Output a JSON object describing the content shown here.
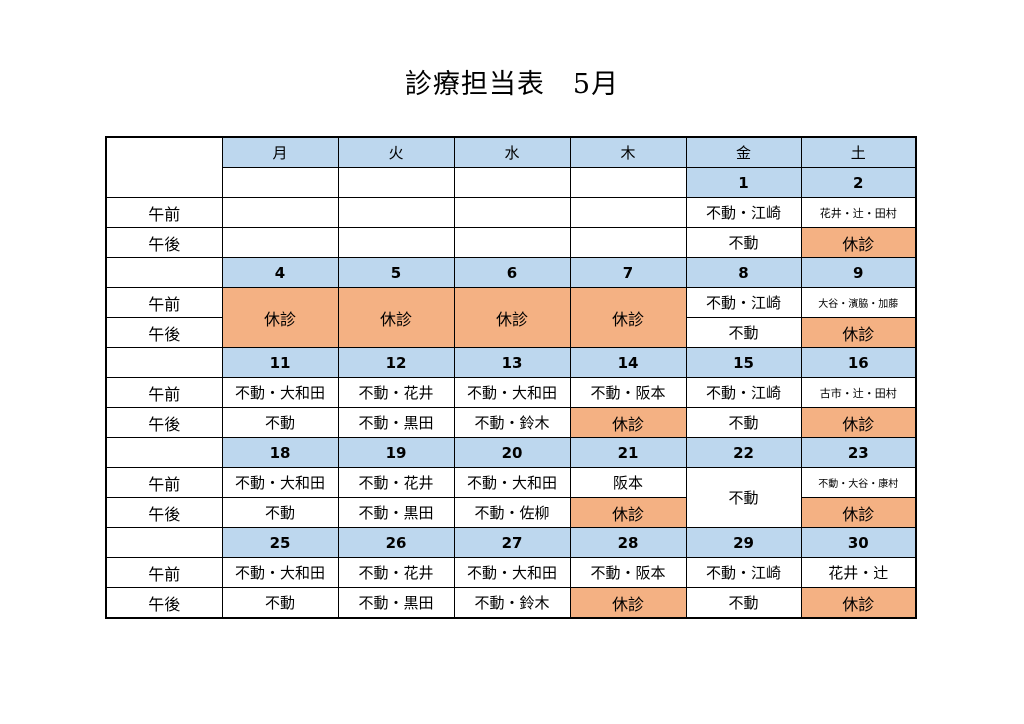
{
  "title": "診療担当表　5月",
  "colors": {
    "header_blue": "#bdd7ee",
    "closed_orange": "#f4b183"
  },
  "labels": {
    "am": "午前",
    "pm": "午後"
  },
  "days_of_week": [
    "月",
    "火",
    "水",
    "木",
    "金",
    "土"
  ],
  "week1": {
    "dates": [
      "1",
      "2"
    ],
    "am": [
      "不動・江崎",
      "花井・辻・田村"
    ],
    "pm": [
      "不動",
      "休診"
    ]
  },
  "week2": {
    "dates": [
      "4",
      "5",
      "6",
      "7",
      "8",
      "9"
    ],
    "merged_closed": [
      "休診",
      "休診",
      "休診",
      "休診"
    ],
    "am": [
      "不動・江崎",
      "大谷・濱脇・加藤"
    ],
    "pm": [
      "不動",
      "休診"
    ]
  },
  "week3": {
    "dates": [
      "11",
      "12",
      "13",
      "14",
      "15",
      "16"
    ],
    "am": [
      "不動・大和田",
      "不動・花井",
      "不動・大和田",
      "不動・阪本",
      "不動・江崎",
      "古市・辻・田村"
    ],
    "pm": [
      "不動",
      "不動・黒田",
      "不動・鈴木",
      "休診",
      "不動",
      "休診"
    ]
  },
  "week4": {
    "dates": [
      "18",
      "19",
      "20",
      "21",
      "22",
      "23"
    ],
    "am": [
      "不動・大和田",
      "不動・花井",
      "不動・大和田",
      "阪本",
      "不動・大谷・康村"
    ],
    "fri_merged": "不動",
    "pm": [
      "不動",
      "不動・黒田",
      "不動・佐柳",
      "休診",
      "休診"
    ]
  },
  "week5": {
    "dates": [
      "25",
      "26",
      "27",
      "28",
      "29",
      "30"
    ],
    "am": [
      "不動・大和田",
      "不動・花井",
      "不動・大和田",
      "不動・阪本",
      "不動・江崎",
      "花井・辻"
    ],
    "pm": [
      "不動",
      "不動・黒田",
      "不動・鈴木",
      "休診",
      "不動",
      "休診"
    ]
  }
}
